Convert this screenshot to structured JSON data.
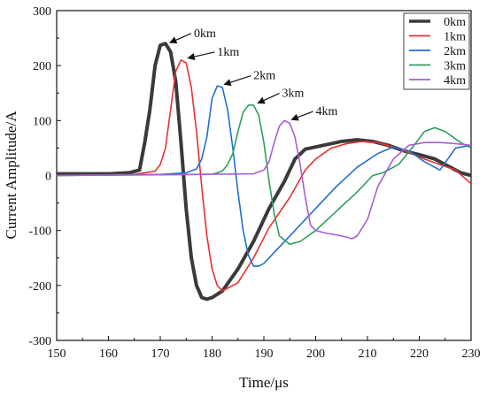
{
  "chart_data": {
    "type": "line",
    "title": "",
    "xlabel": "Time/μs",
    "ylabel": "Current Amplitude/A",
    "xlim": [
      150,
      230
    ],
    "ylim": [
      -300,
      300
    ],
    "x_ticks": [
      "150",
      "160",
      "170",
      "180",
      "190",
      "200",
      "210",
      "220",
      "230"
    ],
    "y_ticks": [
      "-300",
      "-200",
      "-100",
      "0",
      "100",
      "200",
      "300"
    ],
    "grid": false,
    "legend": "top-right",
    "series": [
      {
        "name": "0km",
        "color": "#3a3a3a",
        "x": [
          150,
          160,
          164,
          166,
          167,
          168,
          169,
          170,
          171,
          172,
          173,
          174,
          175,
          176,
          177,
          178,
          179,
          180,
          182,
          185,
          188,
          191,
          194,
          196,
          198,
          200,
          202,
          205,
          208,
          211,
          214,
          217,
          220,
          223,
          226,
          228,
          230
        ],
        "y": [
          3,
          3,
          5,
          10,
          60,
          120,
          200,
          237,
          240,
          225,
          170,
          60,
          -60,
          -150,
          -200,
          -222,
          -225,
          -222,
          -210,
          -170,
          -120,
          -60,
          -10,
          30,
          48,
          52,
          56,
          62,
          65,
          62,
          55,
          45,
          38,
          30,
          15,
          5,
          0
        ]
      },
      {
        "name": "1km",
        "color": "#e8312f",
        "x": [
          150,
          165,
          169,
          170,
          171,
          172,
          173,
          174,
          175,
          176,
          177,
          178,
          179,
          180,
          181,
          182,
          185,
          188,
          191,
          195,
          198,
          200,
          203,
          206,
          209,
          212,
          215,
          218,
          221,
          224,
          227,
          230
        ],
        "y": [
          0,
          2,
          8,
          20,
          50,
          120,
          190,
          210,
          205,
          160,
          80,
          -20,
          -110,
          -170,
          -200,
          -210,
          -195,
          -150,
          -95,
          -40,
          10,
          30,
          50,
          58,
          62,
          60,
          52,
          42,
          30,
          20,
          10,
          -15
        ]
      },
      {
        "name": "2km",
        "color": "#1f6fd0",
        "x": [
          150,
          170,
          175,
          177,
          178,
          179,
          180,
          181,
          182,
          183,
          184,
          185,
          186,
          187,
          188,
          189,
          190,
          193,
          196,
          200,
          204,
          208,
          212,
          215,
          218,
          221,
          224,
          227,
          230
        ],
        "y": [
          0,
          2,
          5,
          12,
          30,
          70,
          140,
          163,
          160,
          120,
          50,
          -30,
          -100,
          -145,
          -165,
          -165,
          -160,
          -130,
          -100,
          -60,
          -20,
          15,
          40,
          52,
          45,
          25,
          10,
          50,
          55
        ]
      },
      {
        "name": "3km",
        "color": "#2e9e5e",
        "x": [
          150,
          180,
          182,
          183,
          184,
          185,
          186,
          187,
          188,
          189,
          190,
          191,
          192,
          193,
          195,
          197,
          200,
          204,
          208,
          211,
          213,
          216,
          219,
          221,
          223,
          225,
          228,
          230
        ],
        "y": [
          0,
          2,
          8,
          20,
          40,
          80,
          115,
          128,
          128,
          110,
          60,
          -10,
          -70,
          -110,
          -125,
          -120,
          -100,
          -65,
          -30,
          0,
          5,
          20,
          55,
          80,
          87,
          80,
          60,
          50
        ]
      },
      {
        "name": "4km",
        "color": "#a65ed6",
        "x": [
          150,
          188,
          190,
          191,
          192,
          193,
          194,
          195,
          196,
          197,
          198,
          199,
          200,
          202,
          204,
          206,
          207,
          208,
          210,
          212,
          215,
          218,
          221,
          224,
          227,
          230
        ],
        "y": [
          0,
          3,
          10,
          25,
          60,
          90,
          100,
          95,
          70,
          20,
          -40,
          -90,
          -100,
          -105,
          -108,
          -112,
          -115,
          -110,
          -80,
          -20,
          30,
          55,
          60,
          60,
          58,
          55
        ]
      }
    ],
    "annotations": [
      {
        "text": "0km",
        "arrow_to": [
          171.5,
          240
        ],
        "text_at": [
          176.5,
          252
        ]
      },
      {
        "text": "1km",
        "arrow_to": [
          175,
          212
        ],
        "text_at": [
          181,
          218
        ]
      },
      {
        "text": "2km",
        "arrow_to": [
          182,
          164
        ],
        "text_at": [
          188,
          175
        ]
      },
      {
        "text": "3km",
        "arrow_to": [
          188.5,
          130
        ],
        "text_at": [
          193.5,
          143
        ]
      },
      {
        "text": "4km",
        "arrow_to": [
          195,
          100
        ],
        "text_at": [
          200,
          110
        ]
      }
    ]
  }
}
